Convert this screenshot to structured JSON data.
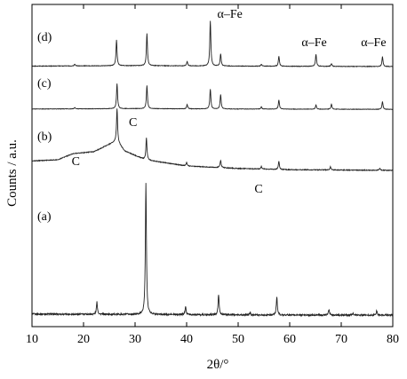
{
  "chart_data": {
    "type": "line",
    "xlabel": "2θ/°",
    "ylabel": "Counts / a.u.",
    "xlim": [
      10,
      80
    ],
    "x_ticks": [
      "10",
      "20",
      "30",
      "40",
      "50",
      "60",
      "70",
      "80"
    ],
    "grid": false,
    "legend": "none",
    "line_color": "#222222",
    "series": [
      {
        "name": "(a)",
        "offset_band": [
          0,
          0.97
        ],
        "baseline": [
          [
            10,
            0.015
          ],
          [
            30,
            0.012
          ],
          [
            55,
            0.008
          ],
          [
            80,
            0.006
          ]
        ],
        "peaks": [
          [
            22.6,
            0.093
          ],
          [
            32.1,
            1.0
          ],
          [
            39.8,
            0.066
          ],
          [
            46.2,
            0.153
          ],
          [
            52.3,
            0.018
          ],
          [
            57.5,
            0.138
          ],
          [
            67.6,
            0.042
          ],
          [
            72.3,
            0.012
          ],
          [
            76.9,
            0.036
          ]
        ]
      },
      {
        "name": "(b)",
        "offset_band": [
          0,
          1
        ],
        "baseline": [
          [
            10,
            0.18
          ],
          [
            15,
            0.2
          ],
          [
            18,
            0.3
          ],
          [
            22,
            0.33
          ],
          [
            25,
            0.45
          ],
          [
            26.5,
            0.5
          ],
          [
            28,
            0.34
          ],
          [
            32,
            0.2
          ],
          [
            40,
            0.1
          ],
          [
            50,
            0.06
          ],
          [
            60,
            0.04
          ],
          [
            80,
            0.03
          ]
        ],
        "peaks": [
          [
            26.5,
            0.53
          ],
          [
            32.2,
            0.36
          ],
          [
            40.0,
            0.06
          ],
          [
            46.6,
            0.12
          ],
          [
            54.5,
            0.04
          ],
          [
            57.9,
            0.13
          ],
          [
            67.9,
            0.05
          ],
          [
            77.5,
            0.03
          ]
        ]
      },
      {
        "name": "(c)",
        "offset_band": [
          0,
          1
        ],
        "baseline": [
          [
            10,
            0.03
          ],
          [
            30,
            0.04
          ],
          [
            50,
            0.03
          ],
          [
            80,
            0.02
          ]
        ],
        "peaks": [
          [
            18.3,
            0.04
          ],
          [
            26.5,
            0.71
          ],
          [
            32.3,
            0.66
          ],
          [
            40.1,
            0.12
          ],
          [
            44.6,
            0.56
          ],
          [
            46.6,
            0.41
          ],
          [
            54.5,
            0.06
          ],
          [
            57.9,
            0.26
          ],
          [
            65.1,
            0.12
          ],
          [
            68.1,
            0.14
          ],
          [
            78.0,
            0.22
          ]
        ]
      },
      {
        "name": "(d)",
        "offset_band": [
          0,
          1
        ],
        "baseline": [
          [
            10,
            0.03
          ],
          [
            30,
            0.04
          ],
          [
            50,
            0.03
          ],
          [
            80,
            0.02
          ]
        ],
        "peaks": [
          [
            18.3,
            0.04
          ],
          [
            26.4,
            0.57
          ],
          [
            32.3,
            0.71
          ],
          [
            40.1,
            0.1
          ],
          [
            44.6,
            1.0
          ],
          [
            46.6,
            0.27
          ],
          [
            54.5,
            0.04
          ],
          [
            57.9,
            0.22
          ],
          [
            65.1,
            0.27
          ],
          [
            68.1,
            0.06
          ],
          [
            78.0,
            0.22
          ]
        ]
      }
    ],
    "annotations": [
      {
        "text": "α–Fe",
        "x": 44.6,
        "series": "(d)"
      },
      {
        "text": "α–Fe",
        "x": 65.1,
        "series": "(d)"
      },
      {
        "text": "α–Fe",
        "x": 78.0,
        "series": "(d)"
      },
      {
        "text": "C",
        "x": 26.5,
        "series": "(b)"
      },
      {
        "text": "C",
        "x": 18.5,
        "series": "(b)"
      },
      {
        "text": "C",
        "x": 54.5,
        "series": "(b)"
      }
    ]
  }
}
